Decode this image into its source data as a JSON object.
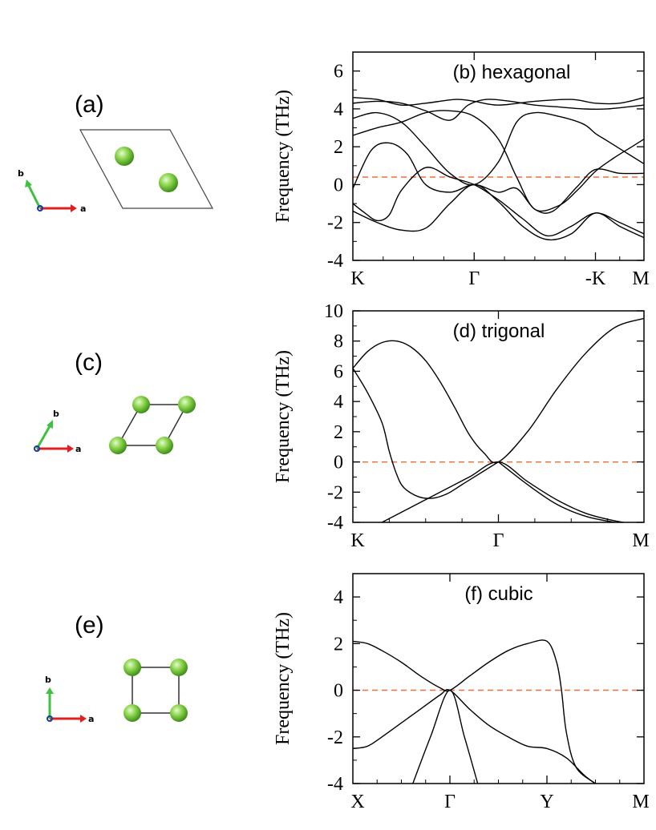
{
  "colors": {
    "curve": "#000000",
    "dashed": "#e8703a",
    "atom": "#7ac943",
    "axis_a": "#e02020",
    "axis_b": "#40c040",
    "axis_origin": "#1a3aa0"
  },
  "structures": [
    {
      "label": "(a)",
      "axis_a": "a",
      "axis_b": "b",
      "lattice": "hexagonal"
    },
    {
      "label": "(c)",
      "axis_a": "a",
      "axis_b": "b",
      "lattice": "trigonal"
    },
    {
      "label": "(e)",
      "axis_a": "a",
      "axis_b": "b",
      "lattice": "cubic"
    }
  ],
  "chart_data": [
    {
      "type": "line",
      "title": "(b) hexagonal",
      "xlabel": "",
      "ylabel": "Frequency (THz)",
      "ylim": [
        -4,
        7
      ],
      "yticks": [
        -4,
        -2,
        0,
        2,
        4,
        6
      ],
      "x_ticks": [
        "K",
        "Γ",
        "-K",
        "M"
      ],
      "x_tick_positions": [
        0,
        1,
        2,
        2.4
      ],
      "xlim": [
        0,
        2.4
      ],
      "reference_line": 0.4,
      "series": [
        {
          "x": [
            0,
            0.2,
            0.4,
            0.6,
            0.85,
            1.0,
            1.2,
            1.5,
            1.8,
            2.0,
            2.2,
            2.4
          ],
          "values": [
            4.6,
            4.5,
            4.2,
            4.3,
            4.5,
            4.4,
            4.2,
            4.4,
            4.5,
            4.3,
            4.3,
            4.6
          ]
        },
        {
          "x": [
            0,
            0.2,
            0.4,
            0.6,
            0.8,
            0.95,
            1.1,
            1.3,
            1.5,
            1.7,
            1.9,
            2.1,
            2.4
          ],
          "values": [
            4.3,
            4.4,
            4.3,
            3.9,
            3.4,
            4.2,
            4.5,
            4.4,
            4.2,
            4.1,
            4.0,
            4.0,
            4.2
          ]
        },
        {
          "x": [
            0,
            0.2,
            0.4,
            0.6,
            0.8,
            1.0,
            1.2,
            1.35,
            1.5,
            1.7,
            1.9,
            2.0,
            2.1,
            2.3,
            2.4
          ],
          "values": [
            3.5,
            3.8,
            3.3,
            2.0,
            0.6,
            0.0,
            1.2,
            3.3,
            3.8,
            3.6,
            3.2,
            2.7,
            2.3,
            1.5,
            1.1
          ]
        },
        {
          "x": [
            0,
            0.2,
            0.4,
            0.6,
            0.8,
            1.0,
            1.2,
            1.35,
            1.5,
            1.7,
            1.85,
            2.0,
            2.15,
            2.3,
            2.4
          ],
          "values": [
            2.6,
            3.0,
            3.3,
            3.8,
            3.9,
            3.6,
            2.4,
            0.4,
            -1.3,
            -1.1,
            -0.3,
            0.7,
            1.4,
            2.0,
            2.4
          ]
        },
        {
          "x": [
            0,
            0.15,
            0.3,
            0.45,
            0.6,
            0.8,
            1.0,
            1.2,
            1.35,
            1.5,
            1.65,
            1.85,
            2.0,
            2.2,
            2.4
          ],
          "values": [
            -0.2,
            1.8,
            2.2,
            1.6,
            0.0,
            -0.4,
            0.0,
            -0.4,
            -0.2,
            -1.3,
            -1.4,
            -0.1,
            0.8,
            0.6,
            0.6
          ]
        },
        {
          "x": [
            0,
            0.1,
            0.2,
            0.3,
            0.4,
            0.6,
            0.8,
            1.0,
            1.2,
            1.4,
            1.6,
            1.8,
            2.0,
            2.2,
            2.4
          ],
          "values": [
            -1.0,
            -1.5,
            -1.9,
            -1.6,
            -0.3,
            0.9,
            0.4,
            0.0,
            -0.8,
            -1.8,
            -2.7,
            -2.2,
            -1.5,
            -2.0,
            -2.6
          ]
        },
        {
          "x": [
            0,
            0.2,
            0.4,
            0.6,
            0.8,
            1.0,
            1.2,
            1.4,
            1.6,
            1.8,
            2.0,
            2.2,
            2.4
          ],
          "values": [
            -1.4,
            -2.0,
            -2.4,
            -2.3,
            -1.0,
            0.0,
            -0.9,
            -2.2,
            -2.9,
            -2.6,
            -1.5,
            -2.2,
            -2.8
          ]
        }
      ]
    },
    {
      "type": "line",
      "title": "(d) trigonal",
      "xlabel": "",
      "ylabel": "Frequency (THz)",
      "ylim": [
        -4,
        10
      ],
      "yticks": [
        -4,
        -2,
        0,
        2,
        4,
        6,
        8,
        10
      ],
      "x_ticks": [
        "K",
        "Γ",
        "M"
      ],
      "x_tick_positions": [
        0,
        1,
        2
      ],
      "xlim": [
        0,
        2
      ],
      "reference_line": 0,
      "series": [
        {
          "x": [
            0,
            0.1,
            0.2,
            0.3,
            0.4,
            0.5,
            0.6,
            0.7,
            0.8,
            0.9,
            1.0,
            1.2,
            1.4,
            1.6,
            1.8,
            2.0
          ],
          "values": [
            6.2,
            7.3,
            7.9,
            8.0,
            7.6,
            6.7,
            5.3,
            3.6,
            1.8,
            0.6,
            0.0,
            2.0,
            4.8,
            7.2,
            8.9,
            9.5
          ]
        },
        {
          "x": [
            0,
            0.1,
            0.2,
            0.25,
            0.3,
            0.35,
            0.45,
            0.55,
            0.65,
            0.75,
            0.85,
            1.0
          ],
          "values": [
            6.2,
            4.6,
            2.6,
            0.7,
            -0.8,
            -1.7,
            -2.3,
            -2.4,
            -2.1,
            -1.5,
            -0.9,
            0.0
          ]
        },
        {
          "x": [
            0.2,
            0.4,
            0.6,
            0.8,
            1.0,
            1.2,
            1.4,
            1.6,
            1.8,
            2.0
          ],
          "values": [
            -4.0,
            -3.0,
            -2.0,
            -1.0,
            0.0,
            -1.3,
            -2.5,
            -3.4,
            -3.9,
            -4.2
          ]
        },
        {
          "x": [
            1.0,
            1.2,
            1.4,
            1.6,
            1.8,
            2.0
          ],
          "values": [
            0.0,
            -1.5,
            -2.8,
            -3.6,
            -4.0,
            -4.3
          ]
        }
      ]
    },
    {
      "type": "line",
      "title": "(f) cubic",
      "xlabel": "",
      "ylabel": "Frequency (THz)",
      "ylim": [
        -4,
        5
      ],
      "yticks": [
        -4,
        -2,
        0,
        2,
        4
      ],
      "x_ticks": [
        "X",
        "Γ",
        "Y",
        "M"
      ],
      "x_tick_positions": [
        0,
        1,
        2,
        3
      ],
      "xlim": [
        0,
        3
      ],
      "reference_line": 0,
      "series": [
        {
          "x": [
            0,
            0.15,
            0.3,
            0.5,
            0.7,
            0.9,
            1.0,
            1.2,
            1.4,
            1.6,
            1.8,
            2.0,
            2.1,
            2.15,
            2.2,
            2.3,
            2.5
          ],
          "values": [
            2.1,
            2.0,
            1.7,
            1.2,
            0.6,
            0.1,
            0.0,
            0.6,
            1.2,
            1.7,
            2.0,
            2.1,
            1.2,
            0.0,
            -1.8,
            -3.3,
            -4.0
          ]
        },
        {
          "x": [
            0,
            0.15,
            0.3,
            0.5,
            0.7,
            0.9,
            1.0,
            1.2,
            1.4,
            1.6,
            1.8,
            2.0,
            2.2,
            2.4,
            2.6
          ],
          "values": [
            -2.5,
            -2.4,
            -2.0,
            -1.4,
            -0.8,
            -0.2,
            0.0,
            -0.8,
            -1.5,
            -2.0,
            -2.4,
            -2.5,
            -2.9,
            -3.7,
            -4.3
          ]
        },
        {
          "x": [
            0.6,
            0.8,
            1.0,
            1.15,
            1.3
          ],
          "values": [
            -4.2,
            -2.0,
            0.0,
            -2.0,
            -4.2
          ]
        }
      ]
    }
  ]
}
